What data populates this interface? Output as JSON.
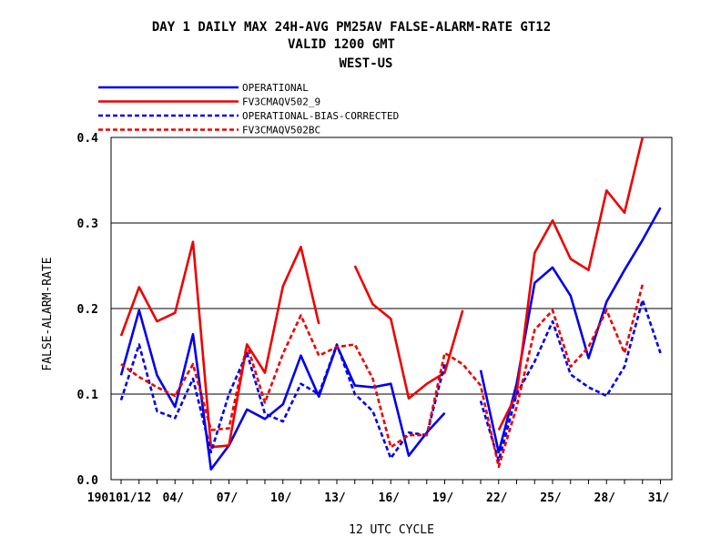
{
  "titles": {
    "line1": "DAY 1 DAILY MAX    24H-AVG PM25AV FALSE-ALARM-RATE GT12",
    "line2": "VALID 1200 GMT",
    "line3": "WEST-US"
  },
  "chart_data": {
    "type": "line",
    "xlabel": "12 UTC CYCLE",
    "ylabel": "FALSE-ALARM-RATE",
    "ylim": [
      0.0,
      0.4
    ],
    "yticks": [
      "0.0",
      "0.1",
      "0.2",
      "0.3",
      "0.4"
    ],
    "grid": true,
    "legend_placement": "top-left",
    "x_days": [
      1,
      2,
      3,
      4,
      5,
      6,
      7,
      8,
      9,
      10,
      11,
      12,
      13,
      14,
      15,
      16,
      17,
      18,
      19,
      20,
      21,
      22,
      23,
      24,
      25,
      26,
      27,
      28,
      29,
      30,
      31
    ],
    "xticks": [
      {
        "day": 1,
        "label": "190101/12"
      },
      {
        "day": 4,
        "label": "04/"
      },
      {
        "day": 7,
        "label": "07/"
      },
      {
        "day": 10,
        "label": "10/"
      },
      {
        "day": 13,
        "label": "13/"
      },
      {
        "day": 16,
        "label": "16/"
      },
      {
        "day": 19,
        "label": "19/"
      },
      {
        "day": 22,
        "label": "22/"
      },
      {
        "day": 25,
        "label": "25/"
      },
      {
        "day": 28,
        "label": "28/"
      },
      {
        "day": 31,
        "label": "31/"
      }
    ],
    "series": [
      {
        "name": "OPERATIONAL",
        "color": "#0000ee",
        "dash": "solid",
        "values": [
          0.122,
          0.198,
          0.122,
          0.085,
          0.17,
          0.012,
          0.04,
          0.082,
          0.071,
          0.088,
          0.145,
          0.097,
          0.157,
          0.11,
          0.108,
          0.112,
          0.028,
          0.055,
          0.078,
          null,
          0.128,
          0.032,
          0.112,
          0.23,
          0.248,
          0.215,
          0.142,
          0.208,
          0.245,
          0.28,
          0.318
        ]
      },
      {
        "name": "FV3CMAQV502_9",
        "color": "#ee0000",
        "dash": "solid",
        "values": [
          0.168,
          0.225,
          0.185,
          0.195,
          0.278,
          0.038,
          0.04,
          0.158,
          0.125,
          0.226,
          0.272,
          0.182,
          null,
          0.25,
          0.205,
          0.188,
          0.095,
          0.112,
          0.125,
          0.198,
          null,
          0.058,
          0.1,
          0.265,
          0.303,
          0.258,
          0.245,
          0.338,
          0.312,
          0.4,
          null
        ]
      },
      {
        "name": "OPERATIONAL-BIAS-CORRECTED",
        "color": "#0000ee",
        "dash": "dashed",
        "values": [
          0.093,
          0.158,
          0.08,
          0.072,
          0.118,
          0.032,
          0.1,
          0.148,
          0.077,
          0.068,
          0.112,
          0.1,
          0.158,
          0.1,
          0.08,
          0.025,
          0.055,
          0.052,
          0.135,
          null,
          0.092,
          0.022,
          0.1,
          0.138,
          0.185,
          0.123,
          0.108,
          0.098,
          0.132,
          0.21,
          0.148
        ]
      },
      {
        "name": "FV3CMAQV502BC",
        "color": "#ee0000",
        "dash": "dashed",
        "values": [
          0.135,
          0.12,
          0.108,
          0.098,
          0.135,
          0.058,
          0.06,
          0.158,
          0.09,
          0.147,
          0.192,
          0.145,
          0.155,
          0.158,
          0.118,
          0.038,
          0.052,
          0.052,
          0.148,
          0.135,
          0.11,
          0.015,
          0.085,
          0.175,
          0.198,
          0.132,
          0.155,
          0.198,
          0.148,
          0.228,
          null
        ]
      }
    ]
  }
}
